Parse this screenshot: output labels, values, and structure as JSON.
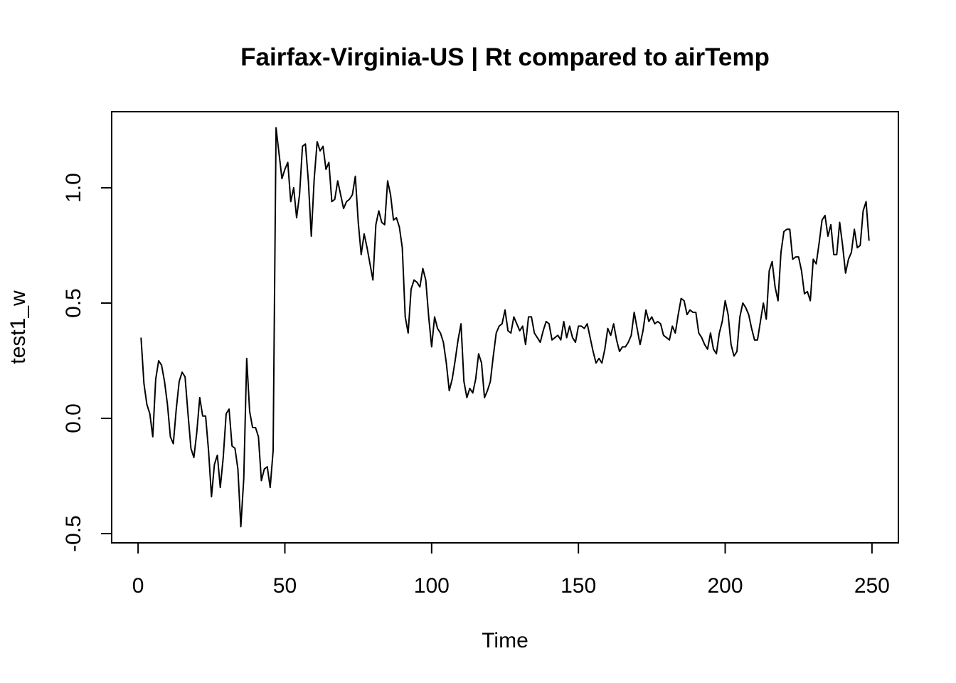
{
  "chart_data": {
    "type": "line",
    "title": "Fairfax-Virginia-US | Rt compared to airTemp",
    "xlabel": "Time",
    "ylabel": "test1_w",
    "xlim": [
      -9,
      259
    ],
    "ylim": [
      -0.54,
      1.33
    ],
    "x_ticks": [
      0,
      50,
      100,
      150,
      200,
      250
    ],
    "x_tick_labels": [
      "0",
      "50",
      "100",
      "150",
      "200",
      "250"
    ],
    "y_ticks": [
      -0.5,
      0.0,
      0.5,
      1.0
    ],
    "y_tick_labels": [
      "-0.5",
      "0.0",
      "0.5",
      "1.0"
    ],
    "grid": false,
    "legend": "none",
    "line_color": "#000000",
    "series": [
      {
        "x_start": 1,
        "x_step": 1,
        "values": [
          0.35,
          0.15,
          0.06,
          0.02,
          -0.08,
          0.17,
          0.25,
          0.23,
          0.16,
          0.06,
          -0.08,
          -0.11,
          0.04,
          0.16,
          0.2,
          0.18,
          0.02,
          -0.13,
          -0.17,
          -0.06,
          0.09,
          0.01,
          0.01,
          -0.14,
          -0.34,
          -0.2,
          -0.16,
          -0.3,
          -0.17,
          0.02,
          0.04,
          -0.12,
          -0.13,
          -0.22,
          -0.47,
          -0.26,
          0.26,
          0.03,
          -0.04,
          -0.04,
          -0.08,
          -0.27,
          -0.22,
          -0.21,
          -0.3,
          -0.14,
          1.26,
          1.15,
          1.04,
          1.08,
          1.11,
          0.94,
          1.0,
          0.87,
          0.97,
          1.18,
          1.19,
          1.03,
          0.79,
          1.04,
          1.2,
          1.16,
          1.18,
          1.08,
          1.11,
          0.94,
          0.95,
          1.03,
          0.97,
          0.91,
          0.94,
          0.95,
          0.97,
          1.05,
          0.85,
          0.71,
          0.8,
          0.74,
          0.67,
          0.6,
          0.84,
          0.9,
          0.85,
          0.84,
          1.03,
          0.97,
          0.86,
          0.87,
          0.83,
          0.74,
          0.44,
          0.37,
          0.56,
          0.6,
          0.59,
          0.57,
          0.65,
          0.6,
          0.44,
          0.31,
          0.44,
          0.39,
          0.37,
          0.33,
          0.24,
          0.12,
          0.17,
          0.25,
          0.34,
          0.41,
          0.16,
          0.09,
          0.13,
          0.11,
          0.17,
          0.28,
          0.24,
          0.09,
          0.12,
          0.16,
          0.27,
          0.37,
          0.4,
          0.41,
          0.47,
          0.38,
          0.37,
          0.44,
          0.41,
          0.38,
          0.4,
          0.32,
          0.44,
          0.44,
          0.37,
          0.35,
          0.33,
          0.38,
          0.42,
          0.41,
          0.34,
          0.35,
          0.36,
          0.34,
          0.42,
          0.35,
          0.4,
          0.35,
          0.33,
          0.4,
          0.4,
          0.39,
          0.41,
          0.35,
          0.29,
          0.24,
          0.26,
          0.24,
          0.3,
          0.39,
          0.36,
          0.41,
          0.34,
          0.29,
          0.31,
          0.31,
          0.33,
          0.36,
          0.46,
          0.39,
          0.32,
          0.38,
          0.47,
          0.42,
          0.44,
          0.41,
          0.42,
          0.41,
          0.36,
          0.35,
          0.34,
          0.4,
          0.37,
          0.45,
          0.52,
          0.51,
          0.45,
          0.47,
          0.46,
          0.46,
          0.37,
          0.35,
          0.32,
          0.3,
          0.37,
          0.3,
          0.28,
          0.37,
          0.42,
          0.51,
          0.45,
          0.32,
          0.27,
          0.29,
          0.44,
          0.5,
          0.48,
          0.45,
          0.39,
          0.34,
          0.34,
          0.42,
          0.5,
          0.43,
          0.64,
          0.68,
          0.57,
          0.51,
          0.72,
          0.81,
          0.82,
          0.82,
          0.69,
          0.7,
          0.7,
          0.64,
          0.54,
          0.55,
          0.51,
          0.69,
          0.67,
          0.76,
          0.86,
          0.88,
          0.79,
          0.84,
          0.71,
          0.71,
          0.85,
          0.75,
          0.63,
          0.69,
          0.72,
          0.82,
          0.74,
          0.75,
          0.9,
          0.94,
          0.77
        ]
      }
    ]
  }
}
